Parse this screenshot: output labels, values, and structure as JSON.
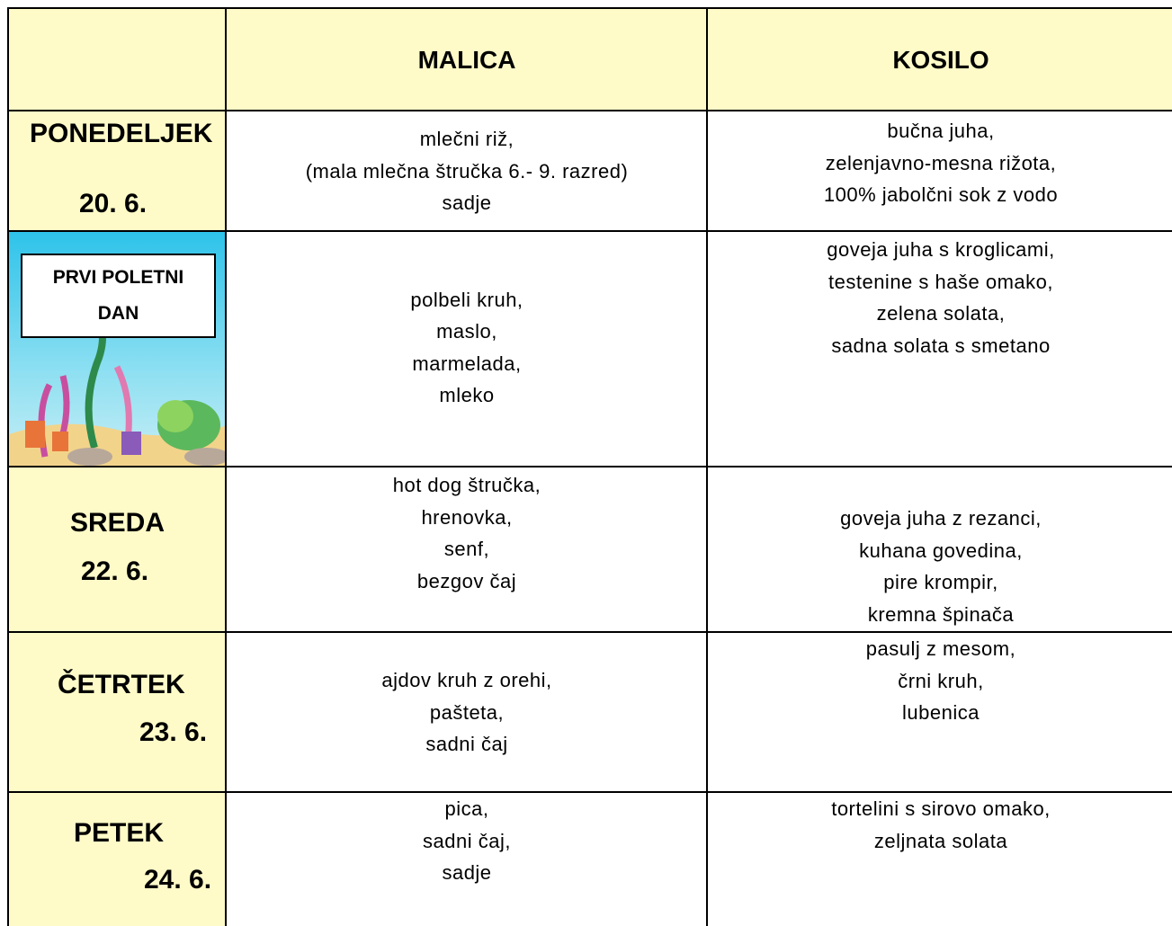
{
  "header": {
    "columns": [
      "MALICA",
      "KOSILO"
    ]
  },
  "rows": [
    {
      "day": "PONEDELJEK",
      "date": "20. 6.",
      "malica": [
        "mlečni riž,",
        "(mala mlečna štručka 6.- 9. razred)",
        "sadje"
      ],
      "kosilo": [
        "bučna juha,",
        "zelenjavno-mesna rižota,",
        "100% jabolčni sok z vodo"
      ]
    },
    {
      "label": [
        "PRVI POLETNI",
        "DAN"
      ],
      "malica": [
        "polbeli kruh,",
        "maslo,",
        "marmelada,",
        "mleko"
      ],
      "kosilo": [
        "goveja juha s kroglicami,",
        "testenine s haše omako,",
        "zelena solata,",
        "sadna solata s smetano"
      ]
    },
    {
      "day": "SREDA",
      "date": "22. 6.",
      "malica": [
        "hot dog štručka,",
        "hrenovka,",
        "senf,",
        "bezgov čaj"
      ],
      "kosilo": [
        "goveja juha z rezanci,",
        "kuhana govedina,",
        "pire krompir,",
        "kremna špinača"
      ]
    },
    {
      "day": "ČETRTEK",
      "date": "23. 6.",
      "malica": [
        "ajdov kruh z orehi,",
        "pašteta,",
        "sadni čaj"
      ],
      "kosilo": [
        "pasulj z mesom,",
        "črni kruh,",
        "lubenica"
      ]
    },
    {
      "day": "PETEK",
      "date": "24. 6.",
      "malica": [
        "pica,",
        "sadni čaj,",
        "sadje"
      ],
      "kosilo": [
        "tortelini s sirovo omako,",
        "zeljnata solata"
      ]
    }
  ]
}
